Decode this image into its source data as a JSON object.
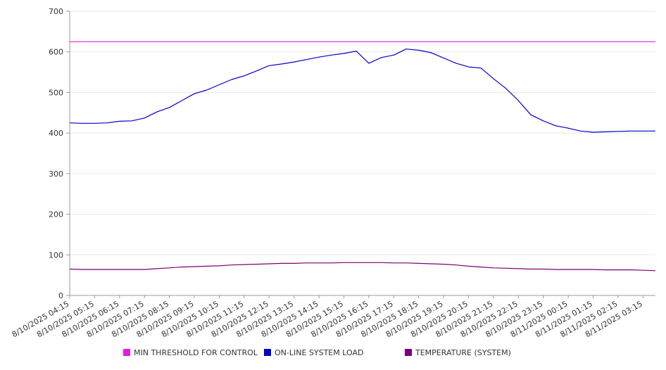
{
  "chart_data": {
    "type": "line",
    "title": "",
    "xlabel": "",
    "ylabel": "",
    "ylim": [
      0,
      700
    ],
    "yticks": [
      0,
      100,
      200,
      300,
      400,
      500,
      600,
      700
    ],
    "grid": true,
    "legend_position": "bottom",
    "x_tick_labels": [
      "8/10/2025 04:15",
      "8/10/2025 05:15",
      "8/10/2025 06:15",
      "8/10/2025 07:15",
      "8/10/2025 08:15",
      "8/10/2025 09:15",
      "8/10/2025 10:15",
      "8/10/2025 11:15",
      "8/10/2025 12:15",
      "8/10/2025 13:15",
      "8/10/2025 14:15",
      "8/10/2025 15:15",
      "8/10/2025 16:15",
      "8/10/2025 17:15",
      "8/10/2025 18:15",
      "8/10/2025 19:15",
      "8/10/2025 20:15",
      "8/10/2025 21:15",
      "8/10/2025 22:15",
      "8/10/2025 23:15",
      "8/11/2025 00:15",
      "8/11/2025 01:15",
      "8/11/2025 02:15",
      "8/11/2025 03:15"
    ],
    "x": [
      "8/10/2025 04:15",
      "8/10/2025 04:45",
      "8/10/2025 05:15",
      "8/10/2025 05:45",
      "8/10/2025 06:15",
      "8/10/2025 06:45",
      "8/10/2025 07:15",
      "8/10/2025 07:45",
      "8/10/2025 08:15",
      "8/10/2025 08:45",
      "8/10/2025 09:15",
      "8/10/2025 09:45",
      "8/10/2025 10:15",
      "8/10/2025 10:45",
      "8/10/2025 11:15",
      "8/10/2025 11:45",
      "8/10/2025 12:15",
      "8/10/2025 12:45",
      "8/10/2025 13:15",
      "8/10/2025 13:45",
      "8/10/2025 14:15",
      "8/10/2025 14:45",
      "8/10/2025 15:15",
      "8/10/2025 15:45",
      "8/10/2025 16:15",
      "8/10/2025 16:45",
      "8/10/2025 17:15",
      "8/10/2025 17:45",
      "8/10/2025 18:15",
      "8/10/2025 18:45",
      "8/10/2025 19:15",
      "8/10/2025 19:45",
      "8/10/2025 20:15",
      "8/10/2025 20:45",
      "8/10/2025 21:15",
      "8/10/2025 21:45",
      "8/10/2025 22:15",
      "8/10/2025 22:45",
      "8/10/2025 23:15",
      "8/10/2025 23:45",
      "8/11/2025 00:15",
      "8/11/2025 00:45",
      "8/11/2025 01:15",
      "8/11/2025 01:45",
      "8/11/2025 02:15",
      "8/11/2025 02:45",
      "8/11/2025 03:15",
      "8/11/2025 03:45"
    ],
    "series": [
      {
        "name": "MIN THRESHOLD FOR CONTROL",
        "color": "#e020e0",
        "values": [
          625,
          625,
          625,
          625,
          625,
          625,
          625,
          625,
          625,
          625,
          625,
          625,
          625,
          625,
          625,
          625,
          625,
          625,
          625,
          625,
          625,
          625,
          625,
          625,
          625,
          625,
          625,
          625,
          625,
          625,
          625,
          625,
          625,
          625,
          625,
          625,
          625,
          625,
          625,
          625,
          625,
          625,
          625,
          625,
          625,
          625,
          625,
          625
        ]
      },
      {
        "name": "ON-LINE SYSTEM LOAD",
        "color": "#0000cc",
        "values": [
          425,
          424,
          424,
          425,
          429,
          430,
          437,
          452,
          463,
          480,
          497,
          506,
          519,
          532,
          541,
          553,
          566,
          570,
          575,
          581,
          587,
          592,
          596,
          602,
          572,
          586,
          592,
          607,
          604,
          598,
          585,
          572,
          563,
          560,
          534,
          510,
          480,
          445,
          430,
          418,
          412,
          405,
          402,
          403,
          404,
          405,
          405,
          405
        ]
      },
      {
        "name": "TEMPERATURE (SYSTEM)",
        "color": "#7a0077",
        "values": [
          65,
          64,
          64,
          64,
          64,
          64,
          64,
          66,
          68,
          70,
          71,
          72,
          73,
          75,
          76,
          77,
          78,
          79,
          79,
          80,
          80,
          80,
          81,
          81,
          81,
          81,
          80,
          80,
          79,
          78,
          77,
          75,
          72,
          70,
          68,
          67,
          66,
          65,
          65,
          64,
          64,
          64,
          64,
          63,
          63,
          63,
          62,
          61
        ]
      }
    ]
  }
}
